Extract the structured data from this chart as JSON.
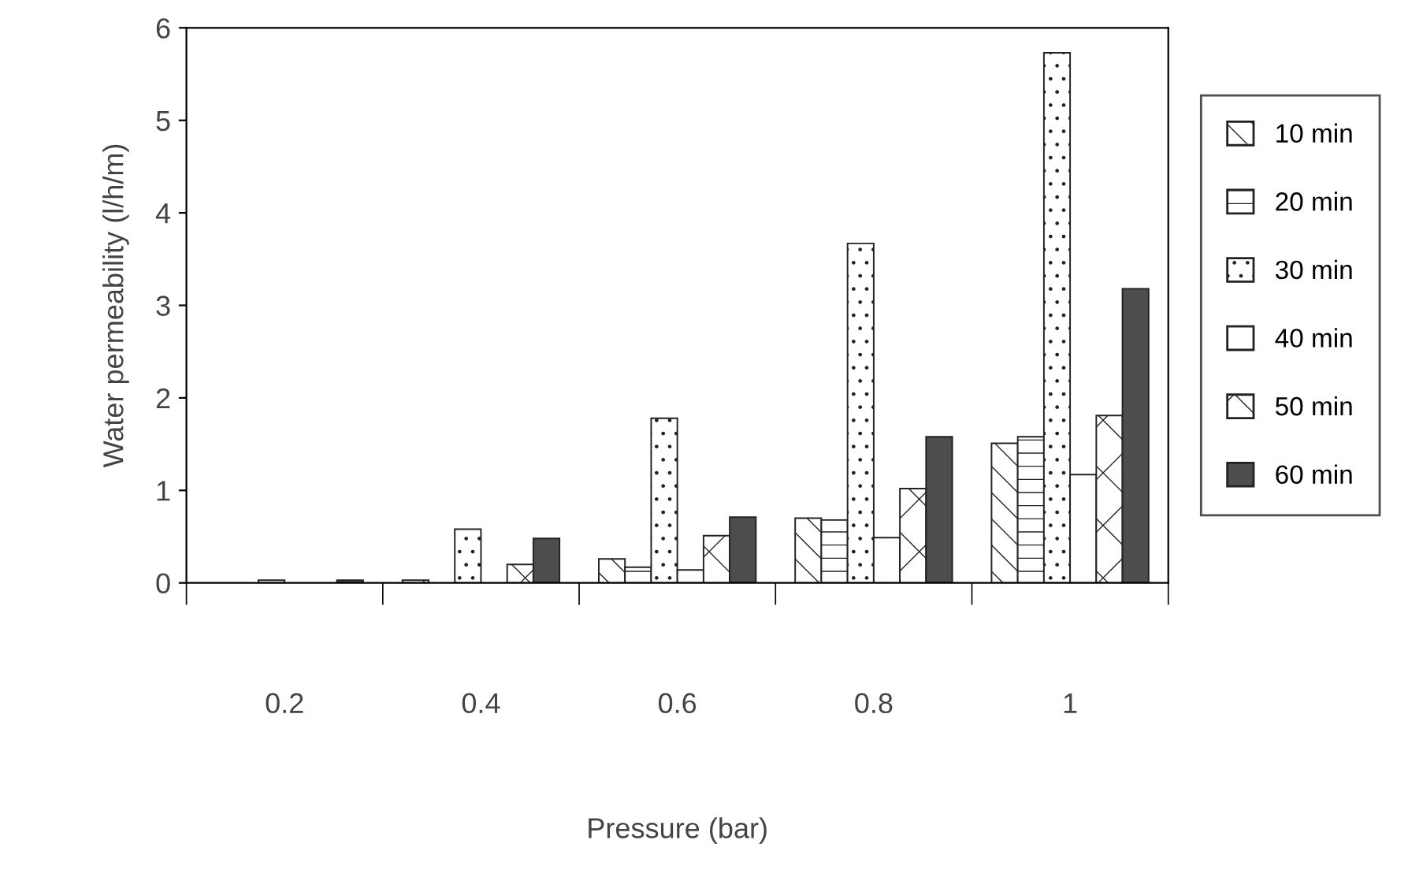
{
  "chart_data": {
    "type": "bar",
    "xlabel": "Pressure (bar)",
    "ylabel": "Water permeability (l/h/m)",
    "categories": [
      "0.2",
      "0.4",
      "0.6",
      "0.8",
      "1"
    ],
    "series": [
      {
        "name": "10 min",
        "color": "#222222",
        "values": [
          null,
          0.03,
          0.26,
          0.7,
          1.51
        ]
      },
      {
        "name": "20 min",
        "color": "#222222",
        "values": [
          null,
          null,
          0.17,
          0.68,
          1.58
        ]
      },
      {
        "name": "30 min",
        "color": "#222222",
        "values": [
          0.03,
          0.58,
          1.78,
          3.67,
          5.73
        ]
      },
      {
        "name": "40 min",
        "color": "#ffffff",
        "values": [
          null,
          null,
          0.14,
          0.49,
          1.17
        ]
      },
      {
        "name": "50 min",
        "color": "#222222",
        "values": [
          null,
          0.2,
          0.51,
          1.02,
          1.81
        ]
      },
      {
        "name": "60 min",
        "color": "#4d4d4d",
        "values": [
          0.03,
          0.48,
          0.71,
          1.58,
          3.18
        ]
      }
    ],
    "ylim": [
      0,
      6
    ],
    "yticks": [
      0,
      1,
      2,
      3,
      4,
      5,
      6
    ],
    "grid": false,
    "legend": "right"
  }
}
